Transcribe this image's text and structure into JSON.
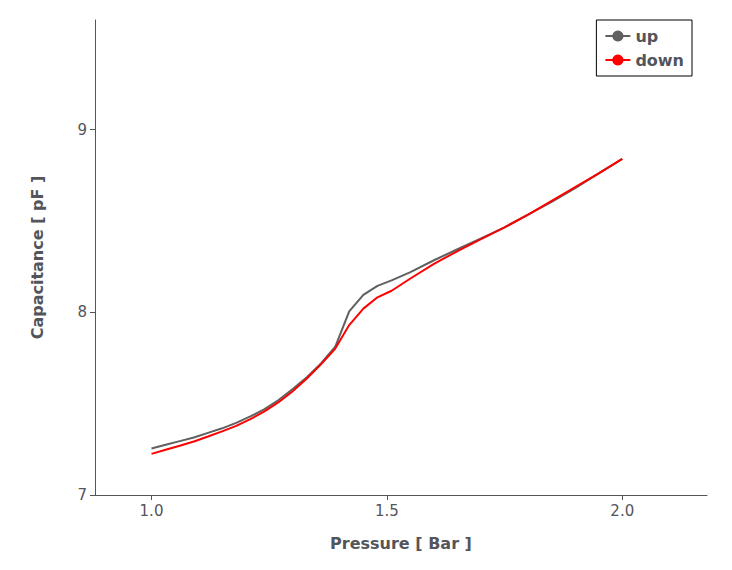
{
  "chart_data": {
    "type": "line",
    "xlabel": "Pressure [ Bar ]",
    "ylabel": "Capacitance [ pF ]",
    "x": [
      1.0,
      1.03,
      1.06,
      1.09,
      1.12,
      1.15,
      1.18,
      1.21,
      1.24,
      1.27,
      1.3,
      1.33,
      1.36,
      1.39,
      1.42,
      1.45,
      1.48,
      1.51,
      1.55,
      1.6,
      1.65,
      1.7,
      1.75,
      1.8,
      1.85,
      1.9,
      1.95,
      2.0
    ],
    "series": [
      {
        "name": "up",
        "color": "#606060",
        "values": [
          7.255,
          7.275,
          7.295,
          7.315,
          7.34,
          7.365,
          7.395,
          7.43,
          7.47,
          7.52,
          7.58,
          7.645,
          7.72,
          7.81,
          8.005,
          8.095,
          8.145,
          8.175,
          8.22,
          8.285,
          8.345,
          8.405,
          8.465,
          8.535,
          8.605,
          8.68,
          8.76,
          8.84
        ]
      },
      {
        "name": "down",
        "color": "#FF0000",
        "values": [
          7.225,
          7.248,
          7.27,
          7.293,
          7.32,
          7.348,
          7.378,
          7.415,
          7.458,
          7.508,
          7.568,
          7.638,
          7.715,
          7.8,
          7.93,
          8.02,
          8.082,
          8.118,
          8.185,
          8.265,
          8.335,
          8.4,
          8.465,
          8.535,
          8.61,
          8.685,
          8.76,
          8.84
        ]
      }
    ],
    "xlim": [
      0.88,
      2.18
    ],
    "ylim": [
      7.0,
      9.6
    ],
    "xticks": [
      {
        "value": 1.0,
        "label": "1.0"
      },
      1.5,
      {
        "value": 2.0,
        "label": "2.0"
      }
    ],
    "yticks": [
      7,
      8,
      9
    ],
    "grid": false,
    "legend": "upper right"
  }
}
